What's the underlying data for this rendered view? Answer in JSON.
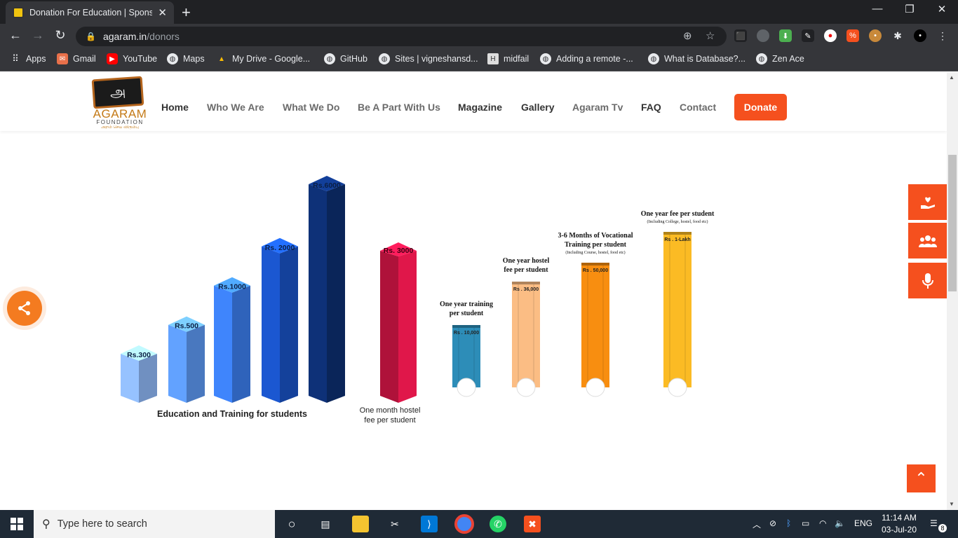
{
  "browser": {
    "tab_title": "Donation For Education | Sponsor",
    "url_host": "agaram.in",
    "url_path": "/donors",
    "bookmarks": [
      "Apps",
      "Gmail",
      "YouTube",
      "Maps",
      "My Drive - Google...",
      "GitHub",
      "Sites | vigneshansd...",
      "midfail",
      "Adding a remote -...",
      "What is Database?...",
      "Zen Ace"
    ]
  },
  "site": {
    "logo_name": "AGARAM",
    "logo_sub": "FOUNDATION",
    "logo_glyph": "அ",
    "logo_tagline": "அறம் செய விரும்பு",
    "menu": [
      "Home",
      "Who We Are",
      "What We Do",
      "Be A Part With Us",
      "Magazine",
      "Gallery",
      "Agaram Tv",
      "FAQ",
      "Contact"
    ],
    "donate": "Donate"
  },
  "chart_data": {
    "type": "bar",
    "groups": [
      {
        "caption": "Education and Training for students",
        "categories": [
          "Rs.300",
          "Rs.500",
          "Rs.1000",
          "Rs. 2000",
          "Rs.6000"
        ],
        "values": [
          300,
          500,
          1000,
          2000,
          6000
        ],
        "colors": [
          "#8fb9f7",
          "#5d9af5",
          "#3c7ff0",
          "#1a53c7",
          "#0d2f72"
        ]
      },
      {
        "caption": "One month hostel fee per student",
        "categories": [
          "Rs. 3000"
        ],
        "values": [
          3000
        ],
        "colors": [
          "#e0174a"
        ]
      },
      {
        "items": [
          {
            "label": "Rs . 10,000",
            "value": 10000,
            "caption": [
              "One year training",
              "per student"
            ],
            "note": "",
            "color": "#2d8db8"
          },
          {
            "label": "Rs . 36,000",
            "value": 36000,
            "caption": [
              "One year hostel",
              "fee per student"
            ],
            "note": "",
            "color": "#fbbd84"
          },
          {
            "label": "Rs . 50,000",
            "value": 50000,
            "caption": [
              "3-6 Months of Vocational",
              "Training per student"
            ],
            "note": "(Including Course, hostel, food etc)",
            "color": "#f88e10"
          },
          {
            "label": "Rs . 1-Lakh",
            "value": 100000,
            "caption": [
              "One year fee per student"
            ],
            "note": "(Including College, hostel, food etc)",
            "color": "#fbbb24"
          }
        ]
      }
    ]
  },
  "taskbar": {
    "search_placeholder": "Type here to search",
    "lang": "ENG",
    "time": "11:14 AM",
    "date": "03-Jul-20",
    "notif_count": "8"
  }
}
